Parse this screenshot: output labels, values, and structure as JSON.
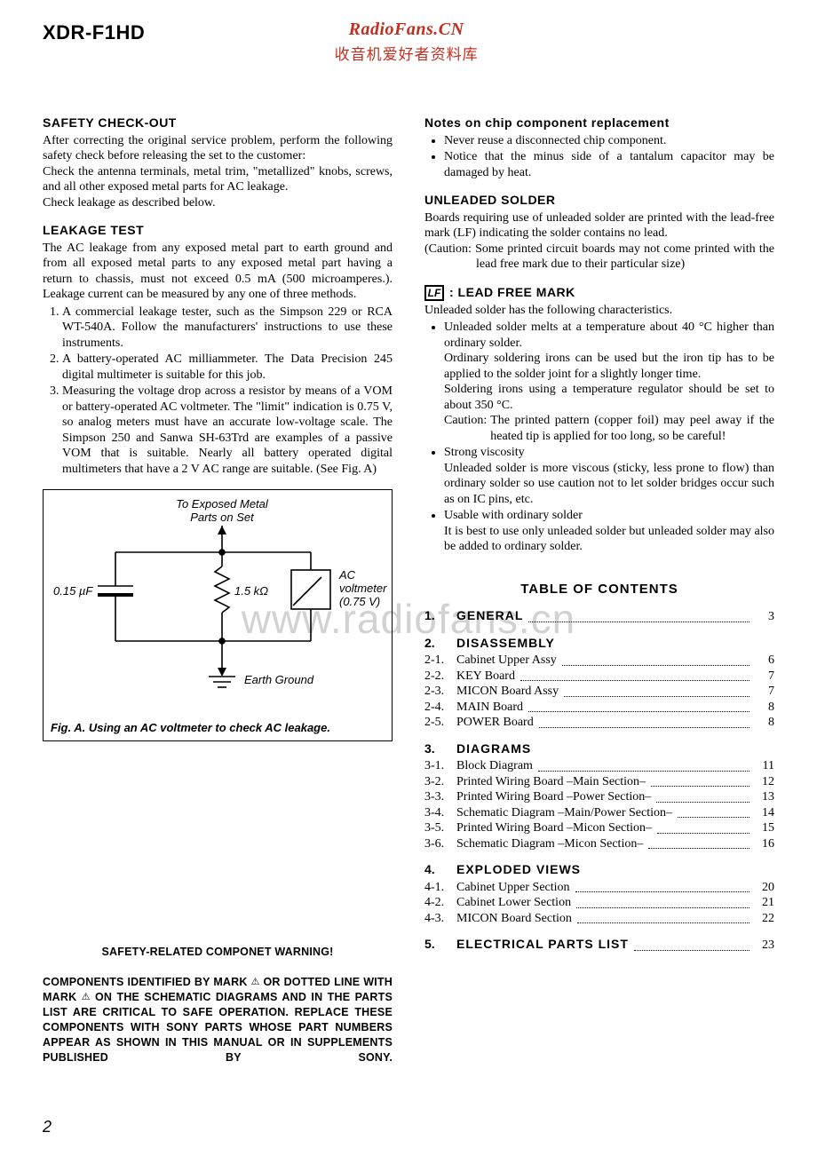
{
  "header": {
    "model": "XDR-F1HD",
    "brand": "RadioFans.CN",
    "sub": "收音机爱好者资料库"
  },
  "watermark": "www.radiofans.cn",
  "left": {
    "safety_h": "SAFETY  CHECK-OUT",
    "safety_p1": "After correcting the original service problem, perform the following safety check before releasing the set to the customer:",
    "safety_p2": "Check the antenna terminals, metal trim, \"metallized\" knobs, screws, and all other exposed metal parts for AC leakage.",
    "safety_p3": "Check leakage as described below.",
    "leak_h": "LEAKAGE  TEST",
    "leak_p": "The AC leakage from any exposed metal part to earth ground and from all exposed metal parts to any exposed metal part having a return to chassis, must not exceed 0.5 mA (500 microamperes.). Leakage current can be measured by any one of three methods.",
    "leak_1": "A commercial leakage tester, such as the Simpson 229 or RCA WT-540A. Follow the manufacturers' instructions to use these instruments.",
    "leak_2": "A battery-operated AC milliammeter. The Data Precision 245 digital multimeter is suitable for this job.",
    "leak_3": "Measuring the voltage drop across a resistor by means of a VOM or battery-operated AC voltmeter. The \"limit\" indication is 0.75 V, so analog meters must have an accurate low-voltage scale. The Simpson 250 and Sanwa SH-63Trd are examples of a passive VOM that is suitable. Nearly all battery operated digital multimeters that have a 2 V AC range are suitable.  (See Fig. A)",
    "fig": {
      "top_label1": "To Exposed Metal",
      "top_label2": "Parts on Set",
      "cap": "0.15 µF",
      "res": "1.5 kΩ",
      "vm1": "AC",
      "vm2": "voltmeter",
      "vm3": "(0.75 V)",
      "earth": "Earth Ground",
      "caption": "Fig. A.    Using an AC voltmeter to check AC leakage."
    },
    "warn_title": "SAFETY-RELATED COMPONET WARNING!",
    "warn_body_a": "COMPONENTS IDENTIFIED BY MARK ",
    "warn_body_b": " OR DOTTED LINE WITH MARK ",
    "warn_body_c": " ON THE SCHEMATIC DIAGRAMS AND IN THE PARTS LIST ARE CRITICAL TO SAFE OPERATION. REPLACE THESE COMPONENTS WITH SONY PARTS WHOSE PART NUMBERS APPEAR AS SHOWN IN THIS MANUAL OR IN SUPPLEMENTS PUBLISHED BY SONY."
  },
  "right": {
    "notes_h": "Notes on chip component replacement",
    "notes_1": "Never reuse a disconnected chip component.",
    "notes_2": "Notice that the minus side of a tantalum capacitor may be damaged by heat.",
    "unl_h": "UNLEADED  SOLDER",
    "unl_p1": "Boards requiring use of unleaded solder are printed with the lead-free mark (LF) indicating the solder contains no lead.",
    "unl_p2": "(Caution: Some printed circuit boards may not come printed with the lead free mark due to their particular size)",
    "lf_icon": "LF",
    "lf_h": ": LEAD  FREE  MARK",
    "lf_intro": "Unleaded solder has the following characteristics.",
    "lf_b1a": "Unleaded solder melts at a temperature about 40 °C higher than ordinary solder.",
    "lf_b1b": "Ordinary soldering irons can be used but the iron tip has to be applied to the solder joint for a slightly longer time.",
    "lf_b1c": "Soldering irons using a temperature regulator should be set to about 350 °C.",
    "lf_b1d_lbl": "Caution:",
    "lf_b1d_txt": "The printed pattern (copper foil) may peel away if the heated tip is applied for too long, so be careful!",
    "lf_b2a": "Strong viscosity",
    "lf_b2b": "Unleaded solder is more viscous (sticky, less prone to flow) than ordinary solder so use caution not to let solder bridges occur such as on IC pins, etc.",
    "lf_b3a": "Usable with ordinary solder",
    "lf_b3b": "It is best to use only unleaded solder but unleaded solder may also be added to ordinary solder.",
    "toc_title": "TABLE  OF  CONTENTS",
    "sections": [
      {
        "num": "1.",
        "label": "GENERAL",
        "page": "3",
        "dots": true,
        "items": []
      },
      {
        "num": "2.",
        "label": "DISASSEMBLY",
        "page": "",
        "dots": false,
        "items": [
          {
            "n": "2-1.",
            "t": "Cabinet Upper Assy",
            "p": "6"
          },
          {
            "n": "2-2.",
            "t": "KEY Board",
            "p": "7"
          },
          {
            "n": "2-3.",
            "t": "MICON Board Assy",
            "p": "7"
          },
          {
            "n": "2-4.",
            "t": "MAIN Board",
            "p": "8"
          },
          {
            "n": "2-5.",
            "t": "POWER Board",
            "p": "8"
          }
        ]
      },
      {
        "num": "3.",
        "label": "DIAGRAMS",
        "page": "",
        "dots": false,
        "items": [
          {
            "n": "3-1.",
            "t": "Block Diagram",
            "p": "11"
          },
          {
            "n": "3-2.",
            "t": "Printed Wiring Board –Main Section–",
            "p": "12"
          },
          {
            "n": "3-3.",
            "t": "Printed Wiring Board –Power Section–",
            "p": "13"
          },
          {
            "n": "3-4.",
            "t": "Schematic Diagram –Main/Power Section–",
            "p": "14"
          },
          {
            "n": "3-5.",
            "t": "Printed Wiring Board –Micon Section–",
            "p": "15"
          },
          {
            "n": "3-6.",
            "t": "Schematic Diagram –Micon Section–",
            "p": "16"
          }
        ]
      },
      {
        "num": "4.",
        "label": "EXPLODED  VIEWS",
        "page": "",
        "dots": false,
        "items": [
          {
            "n": "4-1.",
            "t": "Cabinet Upper Section",
            "p": "20"
          },
          {
            "n": "4-2.",
            "t": "Cabinet Lower Section",
            "p": "21"
          },
          {
            "n": "4-3.",
            "t": "MICON Board Section",
            "p": "22"
          }
        ]
      },
      {
        "num": "5.",
        "label": "ELECTRICAL  PARTS  LIST",
        "page": "23",
        "dots": true,
        "items": []
      }
    ]
  },
  "page_number": "2"
}
